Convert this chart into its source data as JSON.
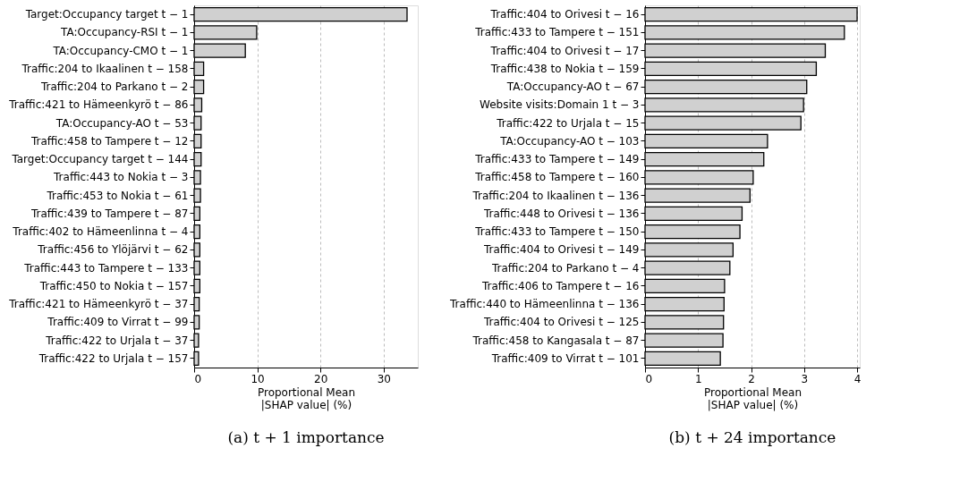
{
  "chart_data": [
    {
      "type": "bar",
      "orientation": "horizontal",
      "title": "(a) t + 1 importance",
      "xlabel": "Proportional Mean\n|SHAP value| (%)",
      "color": "#d0d0d0",
      "categories": [
        "Target:Occupancy target t − 1",
        "TA:Occupancy-RSI  t − 1",
        "TA:Occupancy-CMO  t − 1",
        "Traffic:204 to Ikaalinen  t − 158",
        "Traffic:204 to Parkano  t − 2",
        "Traffic:421 to Hämeenkyrö  t − 86",
        "TA:Occupancy-AO  t − 53",
        "Traffic:458 to Tampere  t − 12",
        "Target:Occupancy target t − 144",
        "Traffic:443 to Nokia  t − 3",
        "Traffic:453 to Nokia  t − 61",
        "Traffic:439 to Tampere  t − 87",
        "Traffic:402 to Hämeenlinna  t − 4",
        "Traffic:456 to Ylöjärvi  t − 62",
        "Traffic:443 to Tampere  t − 133",
        "Traffic:450 to Nokia  t − 157",
        "Traffic:421 to Hämeenkyrö  t − 37",
        "Traffic:409 to Virrat  t − 99",
        "Traffic:422 to Urjala  t − 37",
        "Traffic:422 to Urjala  t − 157"
      ],
      "values": [
        33.7,
        9.9,
        8.1,
        1.5,
        1.5,
        1.2,
        1.1,
        1.1,
        1.1,
        1.0,
        1.0,
        0.9,
        0.9,
        0.9,
        0.9,
        0.9,
        0.8,
        0.8,
        0.7,
        0.7
      ],
      "xlim": [
        0,
        35.4
      ],
      "xticks": [
        0,
        10,
        20,
        30
      ],
      "grid": "x"
    },
    {
      "type": "bar",
      "orientation": "horizontal",
      "title": "(b) t + 24 importance",
      "xlabel": "Proportional Mean\n|SHAP value| (%)",
      "color": "#d0d0d0",
      "categories": [
        "Traffic:404 to Orivesi  t − 16",
        "Traffic:433 to Tampere  t − 151",
        "Traffic:404 to Orivesi  t − 17",
        "Traffic:438 to Nokia  t − 159",
        "TA:Occupancy-AO  t − 67",
        "Website visits:Domain 1  t − 3",
        "Traffic:422 to Urjala  t − 15",
        "TA:Occupancy-AO  t − 103",
        "Traffic:433 to Tampere  t − 149",
        "Traffic:458 to Tampere  t − 160",
        "Traffic:204 to Ikaalinen  t − 136",
        "Traffic:448 to Orivesi  t − 136",
        "Traffic:433 to Tampere  t − 150",
        "Traffic:404 to Orivesi  t − 149",
        "Traffic:204 to Parkano  t − 4",
        "Traffic:406 to Tampere  t − 16",
        "Traffic:440 to Hämeenlinna  t − 136",
        "Traffic:404 to Orivesi  t − 125",
        "Traffic:458 to Kangasala  t − 87",
        "Traffic:409 to Virrat  t − 101"
      ],
      "values": [
        4.0,
        3.76,
        3.4,
        3.23,
        3.05,
        2.99,
        2.94,
        2.31,
        2.24,
        2.04,
        1.98,
        1.83,
        1.79,
        1.66,
        1.6,
        1.5,
        1.49,
        1.48,
        1.47,
        1.42
      ],
      "xlim": [
        0,
        4.05
      ],
      "xticks": [
        0,
        1,
        2,
        3,
        4
      ],
      "grid": "x"
    }
  ]
}
